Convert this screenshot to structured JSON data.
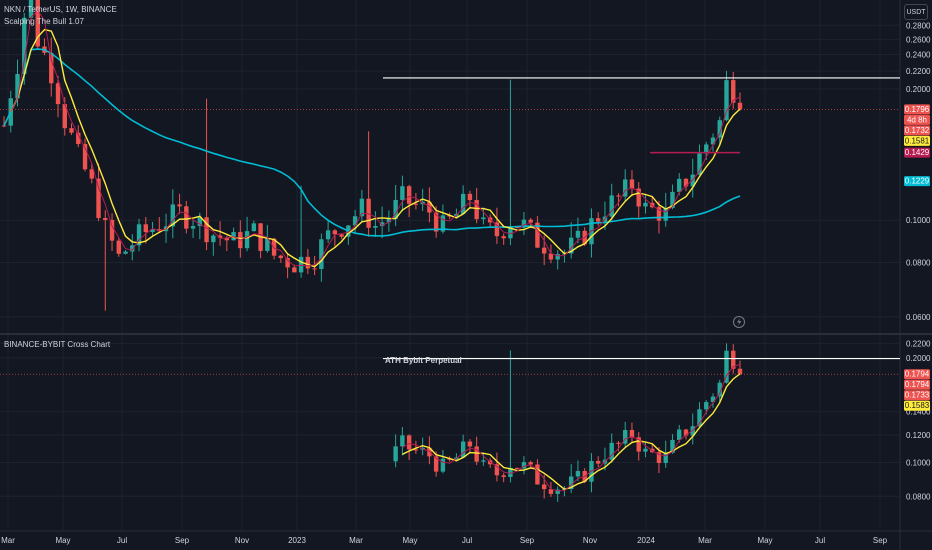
{
  "header": {
    "title": "NKN / TetherUS, 1W, BINANCE",
    "indicator": "Scalping The Bull ",
    "indicator_value": "1.07",
    "currency_button": "USDT"
  },
  "lower_pane": {
    "title": "BINANCE-BYBIT Cross Chart",
    "annotation": "ATH Bybit Perpetual"
  },
  "colors": {
    "background": "#131722",
    "up": "#26a69a",
    "down": "#ef5350",
    "ma_fast": "#ffeb3b",
    "ma_slow": "#00bcd4",
    "ma_mid": "#b71c50",
    "grid": "#1e222d",
    "text": "#d1d4dc"
  },
  "chart_data": [
    {
      "type": "candlestick",
      "pane": "upper",
      "y_scale": "log",
      "ylim": [
        0.056,
        0.32
      ],
      "y_ticks": [
        "0.2800",
        "0.2600",
        "0.2400",
        "0.2200",
        "0.2000",
        "0.1000",
        "0.0800",
        "0.0600"
      ],
      "x_ticks": [
        "Mar",
        "May",
        "Jul",
        "Sep",
        "Nov",
        "2023",
        "Mar",
        "May",
        "Jul",
        "Sep",
        "Nov",
        "2024",
        "Mar",
        "May",
        "Jul",
        "Sep"
      ],
      "resistance_level": 0.212,
      "price_labels": [
        {
          "text": "0.1796",
          "value": 0.1796,
          "color": "#ef5350"
        },
        {
          "text": "4d 8h",
          "value": 0.1762,
          "color": "#ef5350"
        },
        {
          "text": "0.1732",
          "value": 0.1732,
          "color": "#ef5350"
        },
        {
          "text": "0.1581",
          "value": 0.1581,
          "color": "#ffeb3b"
        },
        {
          "text": "0.1429",
          "value": 0.1429,
          "color": "#b71c50"
        },
        {
          "text": "0.1229",
          "value": 0.1229,
          "color": "#00bcd4"
        }
      ]
    },
    {
      "type": "candlestick",
      "pane": "lower",
      "y_scale": "log",
      "ylim": [
        0.064,
        0.225
      ],
      "y_ticks": [
        "0.2200",
        "0.2000",
        "0.1400",
        "0.1200",
        "0.1000",
        "0.0800"
      ],
      "resistance_level": 0.199,
      "price_labels": [
        {
          "text": "0.1794",
          "value": 0.1794,
          "color": "#ef5350"
        },
        {
          "text": "0.1794",
          "value": 0.1794,
          "color": "#ef5350"
        },
        {
          "text": "0.1733",
          "value": 0.1733,
          "color": "#ef5350"
        },
        {
          "text": "0.1583",
          "value": 0.1583,
          "color": "#ffeb3b"
        }
      ]
    }
  ]
}
